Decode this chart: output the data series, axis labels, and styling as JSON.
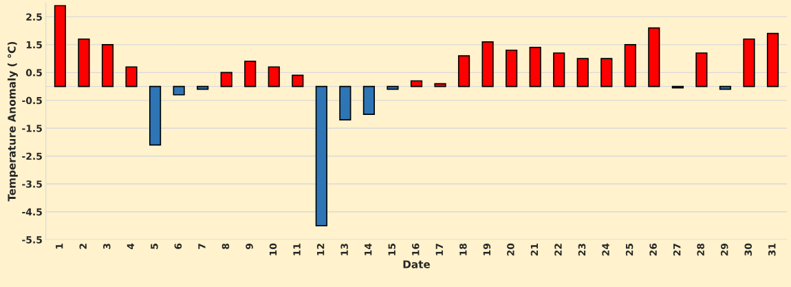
{
  "chart_data": {
    "type": "bar",
    "xlabel": "Date",
    "ylabel": "Temperature Anomaly ( ℃)",
    "categories": [
      "1",
      "2",
      "3",
      "4",
      "5",
      "6",
      "7",
      "8",
      "9",
      "10",
      "11",
      "12",
      "13",
      "14",
      "15",
      "16",
      "17",
      "18",
      "19",
      "20",
      "21",
      "22",
      "23",
      "24",
      "25",
      "26",
      "27",
      "28",
      "29",
      "30",
      "31"
    ],
    "values": [
      2.9,
      1.7,
      1.5,
      0.7,
      -2.1,
      -0.3,
      -0.1,
      0.5,
      0.9,
      0.7,
      0.4,
      -5.0,
      -1.2,
      -1.0,
      -0.1,
      0.2,
      0.1,
      1.1,
      1.6,
      1.3,
      1.4,
      1.2,
      1.0,
      1.0,
      1.5,
      2.1,
      -0.05,
      1.2,
      -0.1,
      1.7,
      1.9
    ],
    "colors": [
      "#ff0000",
      "#ff0000",
      "#ff0000",
      "#ff0000",
      "#2e75b6",
      "#2e75b6",
      "#2e75b6",
      "#ff0000",
      "#ff0000",
      "#ff0000",
      "#ff0000",
      "#2e75b6",
      "#2e75b6",
      "#2e75b6",
      "#2e75b6",
      "#ff0000",
      "#ff0000",
      "#ff0000",
      "#ff0000",
      "#ff0000",
      "#ff0000",
      "#ff0000",
      "#ff0000",
      "#ff0000",
      "#ff0000",
      "#ff0000",
      "#2e75b6",
      "#ff0000",
      "#2e75b6",
      "#ff0000",
      "#ff0000"
    ],
    "ylim": [
      -5.5,
      3.0
    ],
    "yticks": [
      -5.5,
      -4.5,
      -3.5,
      -2.5,
      -1.5,
      -0.5,
      0.5,
      1.5,
      2.5
    ],
    "grid": "y",
    "legend": false
  }
}
